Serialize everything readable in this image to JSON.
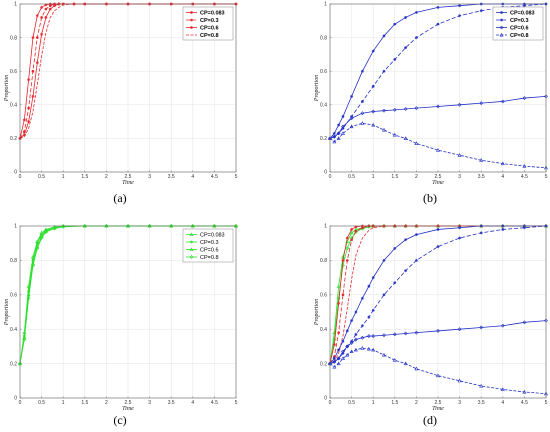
{
  "captions": [
    "(a)",
    "(b)",
    "(c)",
    "(d)"
  ],
  "colors": {
    "red": "#e8262c",
    "blue": "#2330c8",
    "green": "#2ee02e"
  },
  "chart_data": [
    {
      "type": "line",
      "xlabel": "Time",
      "ylabel": "Proportion",
      "xlim": [
        0,
        5
      ],
      "ylim": [
        0,
        1
      ],
      "xticks": [
        "0",
        "0.5",
        "1",
        "1.5",
        "2",
        "2.5",
        "3",
        "3.5",
        "4",
        "4.5",
        "5"
      ],
      "yticks": [
        "0",
        "0.2",
        "0.4",
        "0.6",
        "0.8",
        "1"
      ],
      "grid": true,
      "legend": "top-right",
      "legend_bold": true,
      "x": [
        0,
        0.1,
        0.2,
        0.3,
        0.4,
        0.5,
        0.6,
        0.7,
        0.8,
        0.9,
        1.0,
        1.25,
        1.5,
        2,
        2.5,
        3,
        3.5,
        4,
        4.5,
        5
      ],
      "series": [
        {
          "name": "CP=0.083",
          "color": "red",
          "marker": "star",
          "dash": "",
          "values": [
            0.2,
            0.31,
            0.55,
            0.8,
            0.93,
            0.98,
            0.995,
            1,
            1,
            1,
            1,
            1,
            1,
            1,
            1,
            1,
            1,
            1,
            1,
            1
          ]
        },
        {
          "name": "CP=0.3",
          "color": "red",
          "marker": "dot",
          "dash": "4,2",
          "values": [
            0.2,
            0.24,
            0.38,
            0.6,
            0.8,
            0.92,
            0.97,
            0.99,
            1,
            1,
            1,
            1,
            1,
            1,
            1,
            1,
            1,
            1,
            1,
            1
          ]
        },
        {
          "name": "CP=0.6",
          "color": "red",
          "marker": "star",
          "dash": "",
          "values": [
            0.2,
            0.22,
            0.3,
            0.45,
            0.65,
            0.82,
            0.92,
            0.97,
            0.99,
            1,
            1,
            1,
            1,
            1,
            1,
            1,
            1,
            1,
            1,
            1
          ]
        },
        {
          "name": "CP=0.8",
          "color": "red",
          "marker": "none",
          "dash": "3,1.5",
          "values": [
            0.2,
            0.21,
            0.26,
            0.36,
            0.52,
            0.69,
            0.83,
            0.92,
            0.96,
            0.98,
            0.995,
            1,
            1,
            1,
            1,
            1,
            1,
            1,
            1,
            1
          ]
        }
      ]
    },
    {
      "type": "line",
      "xlabel": "Time",
      "ylabel": "Proportion",
      "xlim": [
        0,
        5
      ],
      "ylim": [
        0,
        1
      ],
      "xticks": [
        "0",
        "0.5",
        "1",
        "1.5",
        "2",
        "2.5",
        "3",
        "3.5",
        "4",
        "4.5",
        "5"
      ],
      "yticks": [
        "0",
        "0.2",
        "0.4",
        "0.6",
        "0.8",
        "1"
      ],
      "grid": true,
      "legend": "top-right",
      "legend_bold": true,
      "x": [
        0,
        0.1,
        0.2,
        0.3,
        0.5,
        0.75,
        1.0,
        1.25,
        1.5,
        1.75,
        2.0,
        2.5,
        3.0,
        3.5,
        4.0,
        4.5,
        5.0
      ],
      "series": [
        {
          "name": "CP=0.083",
          "color": "blue",
          "marker": "star",
          "dash": "",
          "values": [
            0.2,
            0.23,
            0.28,
            0.33,
            0.45,
            0.6,
            0.72,
            0.81,
            0.88,
            0.92,
            0.95,
            0.98,
            0.99,
            1,
            1,
            1,
            1
          ]
        },
        {
          "name": "CP=0.3",
          "color": "blue",
          "marker": "star",
          "dash": "4,2",
          "values": [
            0.2,
            0.21,
            0.23,
            0.26,
            0.33,
            0.42,
            0.51,
            0.6,
            0.67,
            0.74,
            0.8,
            0.88,
            0.93,
            0.96,
            0.98,
            0.99,
            1
          ]
        },
        {
          "name": "CP=0.6",
          "color": "blue",
          "marker": "diamond",
          "dash": "",
          "values": [
            0.2,
            0.21,
            0.23,
            0.27,
            0.32,
            0.35,
            0.36,
            0.365,
            0.37,
            0.375,
            0.38,
            0.39,
            0.4,
            0.41,
            0.42,
            0.44,
            0.45
          ]
        },
        {
          "name": "CP=0.8",
          "color": "blue",
          "marker": "triangle",
          "dash": "3,1.5",
          "values": [
            0.2,
            0.18,
            0.2,
            0.23,
            0.27,
            0.29,
            0.28,
            0.25,
            0.22,
            0.2,
            0.17,
            0.13,
            0.1,
            0.07,
            0.05,
            0.035,
            0.025
          ]
        }
      ]
    },
    {
      "type": "line",
      "xlabel": "Time",
      "ylabel": "Proportion",
      "xlim": [
        0,
        5
      ],
      "ylim": [
        0,
        1
      ],
      "xticks": [
        "0",
        "0.5",
        "1",
        "1.5",
        "2",
        "2.5",
        "3",
        "3.5",
        "4",
        "4.5",
        "5"
      ],
      "yticks": [
        "0",
        "0.2",
        "0.4",
        "0.6",
        "0.8",
        "1"
      ],
      "grid": true,
      "legend": "top-right",
      "legend_bold": false,
      "x": [
        0,
        0.1,
        0.2,
        0.3,
        0.4,
        0.5,
        0.6,
        0.8,
        1.0,
        1.5,
        2,
        2.5,
        3,
        3.5,
        4,
        4.5,
        5
      ],
      "series": [
        {
          "name": "CP=0.083",
          "color": "green",
          "marker": "triangle",
          "dash": "",
          "values": [
            0.2,
            0.38,
            0.65,
            0.82,
            0.91,
            0.96,
            0.98,
            0.995,
            1,
            1,
            1,
            1,
            1,
            1,
            1,
            1,
            1
          ]
        },
        {
          "name": "CP=0.3",
          "color": "green",
          "marker": "star",
          "dash": "",
          "values": [
            0.2,
            0.36,
            0.62,
            0.8,
            0.9,
            0.95,
            0.975,
            0.99,
            1,
            1,
            1,
            1,
            1,
            1,
            1,
            1,
            1
          ]
        },
        {
          "name": "CP=0.6",
          "color": "green",
          "marker": "triangle",
          "dash": "",
          "values": [
            0.2,
            0.35,
            0.6,
            0.78,
            0.88,
            0.94,
            0.97,
            0.99,
            1,
            1,
            1,
            1,
            1,
            1,
            1,
            1,
            1
          ]
        },
        {
          "name": "CP=0.8",
          "color": "green",
          "marker": "diamond",
          "dash": "",
          "values": [
            0.2,
            0.34,
            0.58,
            0.77,
            0.87,
            0.93,
            0.965,
            0.985,
            0.995,
            1,
            1,
            1,
            1,
            1,
            1,
            1,
            1
          ]
        }
      ]
    },
    {
      "type": "line",
      "xlabel": "Time",
      "ylabel": "Proportion",
      "xlim": [
        0,
        5
      ],
      "ylim": [
        0,
        1
      ],
      "xticks": [
        "0",
        "0.5",
        "1",
        "1.5",
        "2",
        "2.5",
        "3",
        "3.5",
        "4",
        "4.5",
        "5"
      ],
      "yticks": [
        "0",
        "0.2",
        "0.4",
        "0.6",
        "0.8",
        "1"
      ],
      "grid": true,
      "legend": "none",
      "legend_bold": false,
      "x": [
        0,
        0.1,
        0.2,
        0.3,
        0.4,
        0.5,
        0.6,
        0.75,
        0.9,
        1.0,
        1.25,
        1.5,
        1.75,
        2.0,
        2.5,
        3.0,
        3.5,
        4.0,
        4.5,
        5.0
      ],
      "series": [
        {
          "name": "",
          "color": "green",
          "marker": "triangle",
          "dash": "",
          "values": [
            0.2,
            0.38,
            0.65,
            0.82,
            0.91,
            0.96,
            0.98,
            0.99,
            1,
            1,
            1,
            1,
            1,
            1,
            1,
            1,
            1,
            1,
            1,
            1
          ]
        },
        {
          "name": "",
          "color": "green",
          "marker": "diamond",
          "dash": "",
          "values": [
            0.2,
            0.34,
            0.58,
            0.77,
            0.87,
            0.93,
            0.965,
            0.985,
            0.995,
            1,
            1,
            1,
            1,
            1,
            1,
            1,
            1,
            1,
            1,
            1
          ]
        },
        {
          "name": "",
          "color": "red",
          "marker": "star",
          "dash": "",
          "values": [
            0.2,
            0.31,
            0.55,
            0.8,
            0.93,
            0.98,
            0.995,
            1,
            1,
            1,
            1,
            1,
            1,
            1,
            1,
            1,
            1,
            1,
            1,
            1
          ]
        },
        {
          "name": "",
          "color": "red",
          "marker": "dot",
          "dash": "4,2",
          "values": [
            0.2,
            0.24,
            0.38,
            0.6,
            0.8,
            0.92,
            0.97,
            0.99,
            1,
            1,
            1,
            1,
            1,
            1,
            1,
            1,
            1,
            1,
            1,
            1
          ]
        },
        {
          "name": "",
          "color": "red",
          "marker": "none",
          "dash": "3,1.5",
          "values": [
            0.2,
            0.21,
            0.26,
            0.36,
            0.52,
            0.69,
            0.83,
            0.93,
            0.975,
            0.99,
            1,
            1,
            1,
            1,
            1,
            1,
            1,
            1,
            1,
            1
          ]
        },
        {
          "name": "",
          "color": "blue",
          "marker": "star",
          "dash": "",
          "values": [
            0.2,
            0.23,
            0.28,
            0.33,
            0.39,
            0.45,
            0.5,
            0.58,
            0.65,
            0.7,
            0.8,
            0.87,
            0.92,
            0.95,
            0.98,
            0.99,
            1,
            1,
            1,
            1
          ]
        },
        {
          "name": "",
          "color": "blue",
          "marker": "star",
          "dash": "4,2",
          "values": [
            0.2,
            0.21,
            0.23,
            0.26,
            0.3,
            0.33,
            0.37,
            0.42,
            0.47,
            0.51,
            0.6,
            0.67,
            0.74,
            0.8,
            0.88,
            0.93,
            0.96,
            0.98,
            0.99,
            1
          ]
        },
        {
          "name": "",
          "color": "blue",
          "marker": "diamond",
          "dash": "",
          "values": [
            0.2,
            0.21,
            0.23,
            0.27,
            0.3,
            0.32,
            0.34,
            0.35,
            0.36,
            0.36,
            0.365,
            0.37,
            0.375,
            0.38,
            0.39,
            0.4,
            0.41,
            0.42,
            0.44,
            0.45
          ]
        },
        {
          "name": "",
          "color": "blue",
          "marker": "triangle",
          "dash": "3,1.5",
          "values": [
            0.2,
            0.18,
            0.2,
            0.23,
            0.25,
            0.27,
            0.28,
            0.29,
            0.285,
            0.28,
            0.25,
            0.22,
            0.2,
            0.17,
            0.13,
            0.1,
            0.07,
            0.05,
            0.035,
            0.025
          ]
        }
      ]
    }
  ]
}
